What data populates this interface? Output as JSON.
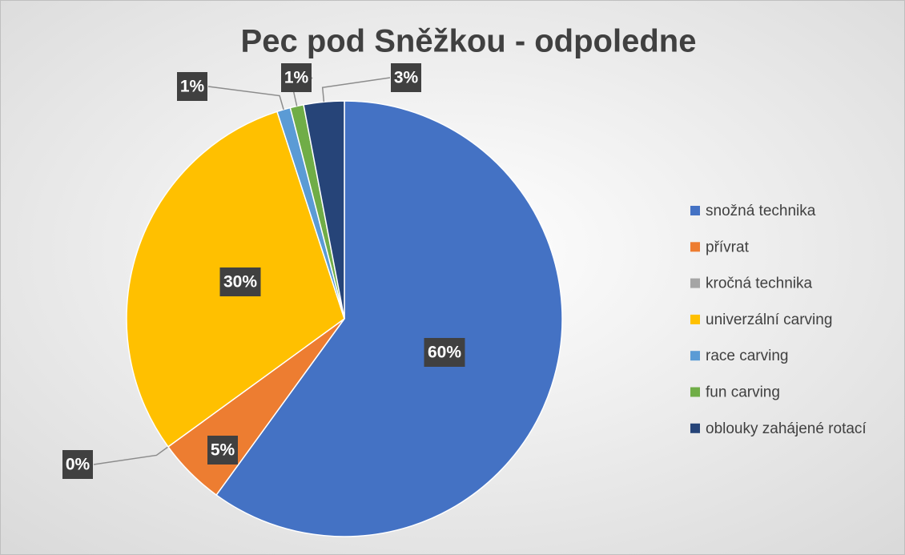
{
  "chart_data": {
    "type": "pie",
    "title": "Pec pod Sněžkou - odpoledne",
    "categories": [
      "snožná technika",
      "přívrat",
      "kročná technika",
      "univerzální carving",
      "race carving",
      "fun carving",
      "oblouky zahájené rotací"
    ],
    "values": [
      60,
      5,
      0,
      30,
      1,
      1,
      3
    ],
    "value_labels": [
      "60%",
      "5%",
      "0%",
      "30%",
      "1%",
      "1%",
      "3%"
    ],
    "colors": [
      "#4472c4",
      "#ed7d31",
      "#a5a5a5",
      "#ffc000",
      "#5b9bd5",
      "#70ad47",
      "#264478"
    ],
    "legend": "right"
  }
}
